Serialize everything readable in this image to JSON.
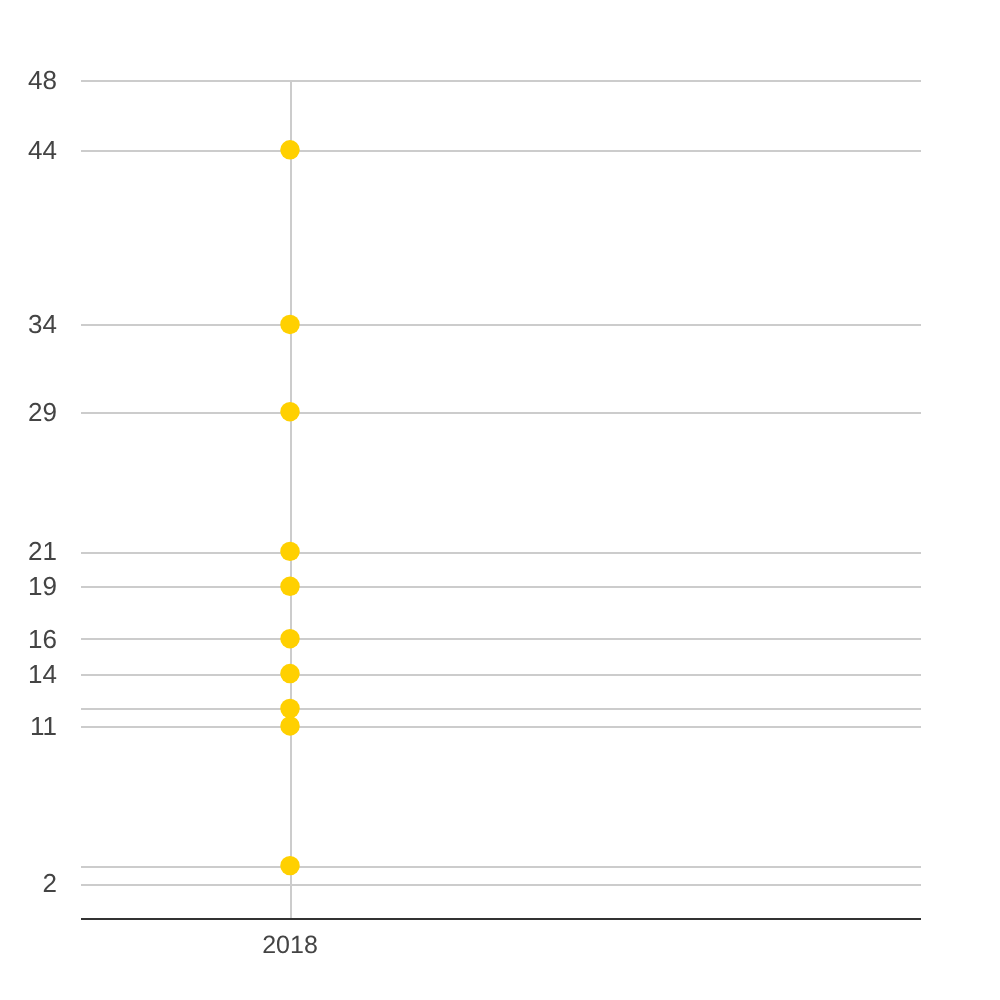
{
  "chart_data": {
    "type": "scatter",
    "categories": [
      "2018"
    ],
    "series": [
      {
        "color": "#ffd000",
        "values": [
          44
        ]
      },
      {
        "color": "#ffd000",
        "values": [
          34
        ]
      },
      {
        "color": "#ffd000",
        "values": [
          29
        ]
      },
      {
        "color": "#ffd000",
        "values": [
          21
        ]
      },
      {
        "color": "#ffd000",
        "values": [
          19
        ]
      },
      {
        "color": "#ffd000",
        "values": [
          16
        ]
      },
      {
        "color": "#ffd000",
        "values": [
          14
        ]
      },
      {
        "color": "#ffd000",
        "values": [
          12
        ]
      },
      {
        "color": "#ffd000",
        "values": [
          11
        ]
      },
      {
        "color": "#ffd000",
        "values": [
          3
        ]
      }
    ],
    "ylim": [
      0,
      48
    ],
    "yticks": [
      2,
      {
        "value": 3,
        "label": null
      },
      11,
      {
        "value": 12,
        "label": null
      },
      14,
      16,
      19,
      21,
      29,
      34,
      44,
      48
    ],
    "grid": true,
    "marker": "circle"
  }
}
